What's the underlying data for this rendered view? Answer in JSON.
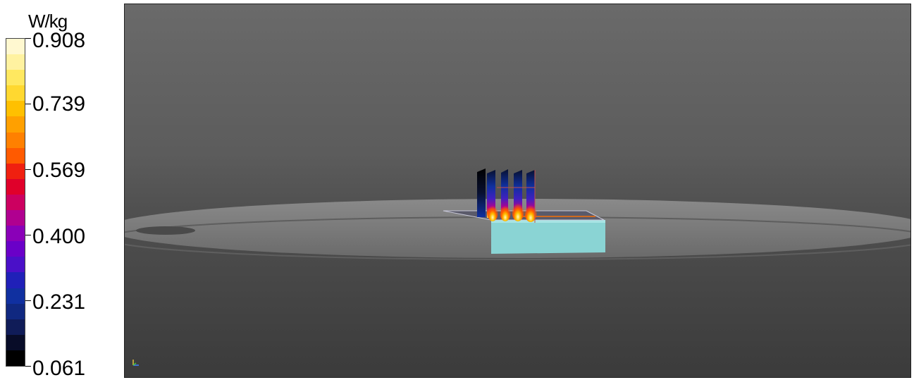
{
  "legend": {
    "unit": "W/kg",
    "ticks": [
      "0.908",
      "0.739",
      "0.569",
      "0.400",
      "0.231",
      "0.061"
    ],
    "colors": [
      "#fff8d0",
      "#fff2a0",
      "#ffe860",
      "#ffd830",
      "#ffc000",
      "#ffa000",
      "#ff8000",
      "#ff5a00",
      "#f02010",
      "#e0002a",
      "#cc0060",
      "#b00090",
      "#8a00b8",
      "#6a00c8",
      "#4a10c8",
      "#2020b8",
      "#1030a0",
      "#102880",
      "#101c58",
      "#080c28",
      "#000000"
    ]
  },
  "colors": {
    "phantom": "#8ad4d4",
    "disc": "#7a7a7a"
  }
}
